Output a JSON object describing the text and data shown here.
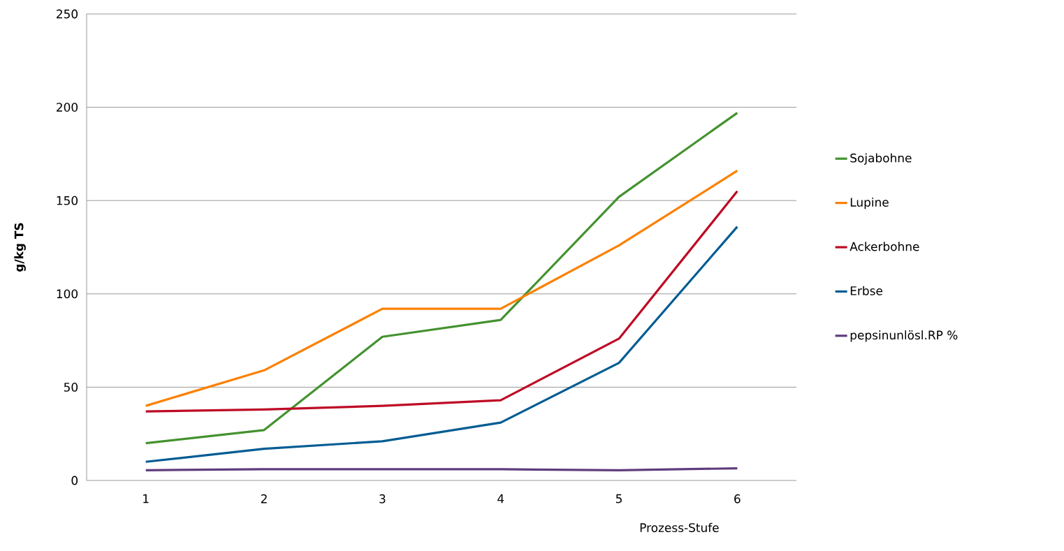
{
  "chart_data": {
    "type": "line",
    "xlabel": "Prozess-Stufe",
    "ylabel": "g/kg TS",
    "categories": [
      "1",
      "2",
      "3",
      "4",
      "5",
      "6"
    ],
    "series": [
      {
        "name": "Sojabohne",
        "color": "#43922f",
        "values": [
          20,
          27,
          77,
          86,
          152,
          197
        ]
      },
      {
        "name": "Lupine",
        "color": "#fc8000",
        "values": [
          40,
          59,
          92,
          92,
          126,
          166
        ]
      },
      {
        "name": "Ackerbohne",
        "color": "#be0a25",
        "values": [
          37,
          38,
          40,
          43,
          76,
          155
        ]
      },
      {
        "name": "Erbse",
        "color": "#005c93",
        "values": [
          10,
          17,
          21,
          31,
          63,
          136
        ]
      },
      {
        "name": "pepsinunlösl.RP %",
        "color": "#603c7c",
        "values": [
          5.5,
          6,
          6,
          6,
          5.5,
          6.5
        ]
      }
    ],
    "ylim": [
      0,
      250
    ],
    "yticks": [
      0,
      50,
      100,
      150,
      200,
      250
    ],
    "grid": "y",
    "legend": "right",
    "marker": "none",
    "line_style": "solid"
  }
}
